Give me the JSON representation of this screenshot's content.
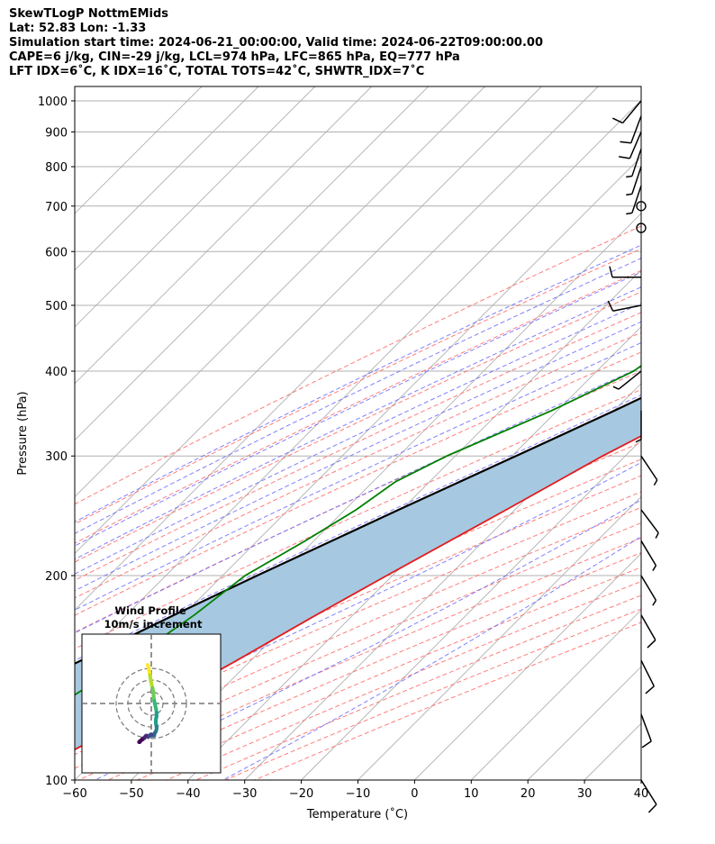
{
  "header": {
    "line1": "SkewTLogP NottmEMids",
    "line2": "Lat: 52.83   Lon: -1.33",
    "line3": "Simulation start time: 2024-06-21_00:00:00, Valid time: 2024-06-22T09:00:00.00",
    "line4": "CAPE=6 j/kg, CIN=-29 j/kg, LCL=974 hPa, LFC=865 hPa, EQ=777 hPa",
    "line5": "LFT IDX=6˚C, K IDX=16˚C, TOTAL TOTS=42˚C, SHWTR_IDX=7˚C"
  },
  "chart_data": {
    "type": "line",
    "title": "SkewTLogP NottmEMids",
    "xlabel": "Temperature (˚C)",
    "ylabel": "Pressure (hPa)",
    "xlim": [
      -60,
      40
    ],
    "ylim": [
      1050,
      100
    ],
    "y_scale": "log",
    "x_ticks": [
      "−60",
      "−50",
      "−40",
      "−30",
      "−20",
      "−10",
      "0",
      "10",
      "20",
      "30",
      "40"
    ],
    "y_ticks": [
      "100",
      "200",
      "300",
      "400",
      "500",
      "600",
      "700",
      "800",
      "900",
      "1000"
    ],
    "x_tick_values": [
      -60,
      -50,
      -40,
      -30,
      -20,
      -10,
      0,
      10,
      20,
      30,
      40
    ],
    "y_tick_values": [
      100,
      200,
      300,
      400,
      500,
      600,
      700,
      800,
      900,
      1000
    ],
    "grid": true,
    "colors": {
      "temperature": "#e41a1c",
      "dewpoint": "#008000",
      "parcel": "#000000",
      "cape_fill": "#a6c8e0",
      "dry_adiabat": "#ff6f6f",
      "moist_adiabat": "#6a6aff",
      "isotherm": "#b0b0b0",
      "mixing_ratio": "#9b3fbf"
    },
    "series": [
      {
        "role": "temperature",
        "p": [
          1000,
          975,
          950,
          925,
          900,
          875,
          850,
          800,
          750,
          700,
          650,
          600,
          550,
          500,
          450,
          400,
          350,
          300,
          250,
          200,
          175,
          150,
          125,
          100
        ],
        "t": [
          13.0,
          13.0,
          12.5,
          10.7,
          10.7,
          9.5,
          9.6,
          9.0,
          8.7,
          8.0,
          6.5,
          4.5,
          1.5,
          -1.5,
          -5.5,
          -10.5,
          -16.5,
          -24.0,
          -31.5,
          -41.0,
          -46.5,
          -52.5,
          -60.0,
          -70.0
        ]
      },
      {
        "role": "dewpoint",
        "p": [
          1000,
          975,
          950,
          925,
          900,
          875,
          850,
          800,
          750,
          700,
          650,
          600,
          550,
          500,
          450,
          420,
          400,
          350,
          300,
          275,
          250,
          225,
          200,
          175,
          150,
          125,
          100
        ],
        "t": [
          12.0,
          10.0,
          6.5,
          6.5,
          5.5,
          5.5,
          5.5,
          8.0,
          3.5,
          -3.0,
          -12.0,
          -19.0,
          -23.0,
          -25.5,
          -32.0,
          -32.5,
          -33.5,
          -41.0,
          -51.5,
          -56.0,
          -58.0,
          -61.5,
          -66.0,
          -68.0,
          -71.5,
          -77.0,
          -85.0
        ]
      },
      {
        "role": "parcel",
        "p": [
          1000,
          975,
          950,
          925,
          900,
          875,
          850,
          800,
          750,
          700,
          650,
          600,
          550,
          500,
          450,
          400,
          350,
          300,
          250,
          200,
          175,
          150,
          125,
          100
        ],
        "t": [
          13.5,
          11.0,
          10.5,
          9.9,
          9.2,
          8.5,
          7.8,
          6.2,
          4.4,
          2.4,
          0.0,
          -2.9,
          -6.4,
          -10.7,
          -15.9,
          -22.2,
          -29.9,
          -39.3,
          -50.5,
          -63.9,
          -71.6,
          -80.0,
          -89.5,
          -100.5
        ]
      }
    ],
    "cape_region": "between temperature and parcel curves",
    "wind_barbs": {
      "p": [
        100,
        125,
        150,
        175,
        200,
        225,
        250,
        300,
        350,
        400,
        500,
        550,
        650,
        700,
        750,
        800,
        850,
        900,
        950,
        1000
      ],
      "u": [
        -5,
        -3,
        -4,
        -4,
        -3,
        -3,
        -3,
        -2,
        0,
        5,
        10,
        8,
        0,
        0,
        2,
        2,
        2,
        3,
        3,
        5
      ],
      "v": [
        8,
        8,
        8,
        7,
        5,
        5,
        4,
        3,
        3,
        4,
        2,
        0,
        0,
        0,
        6,
        6,
        6,
        7,
        8,
        6
      ]
    }
  },
  "inset": {
    "title": "Wind Profile",
    "subtitle": "10m/s increment",
    "chart_data": {
      "type": "line",
      "u": [
        -3.0,
        -2.5,
        -2.0,
        -1.5,
        -1.2,
        -0.8,
        -0.5,
        0.0,
        0.5,
        1.0,
        1.5,
        1.8,
        2.0,
        2.3,
        2.5,
        3.0,
        3.5,
        4.0,
        4.5,
        4.5,
        4.0,
        3.8,
        4.0,
        4.5,
        4.5,
        4.2,
        3.8,
        3.5,
        3.0,
        2.5,
        2.5,
        1.5,
        0.5,
        -0.5,
        -1.5,
        -2.5,
        -3.5,
        -4.5,
        -5.5,
        -6.0,
        -7.0,
        -7.5,
        -8.0,
        -9.0,
        -9.5,
        -10.0,
        -10.5
      ],
      "v": [
        -15.0,
        -14.0,
        -13.0,
        -12.0,
        -11.0,
        -10.0,
        -9.0,
        -8.0,
        -7.0,
        -6.0,
        -5.0,
        -4.0,
        -3.0,
        -2.0,
        -1.0,
        0.0,
        1.0,
        2.0,
        3.5,
        5.0,
        6.0,
        7.0,
        8.0,
        9.0,
        10.0,
        10.5,
        11.0,
        11.0,
        11.5,
        12.0,
        12.5,
        12.5,
        12.0,
        12.0,
        12.5,
        13.0,
        12.5,
        12.5,
        13.0,
        13.5,
        13.5,
        14.0,
        14.0,
        14.5,
        14.5,
        15.0,
        15.0
      ],
      "ring_step": 10,
      "rings": [
        10,
        20,
        30
      ]
    }
  }
}
